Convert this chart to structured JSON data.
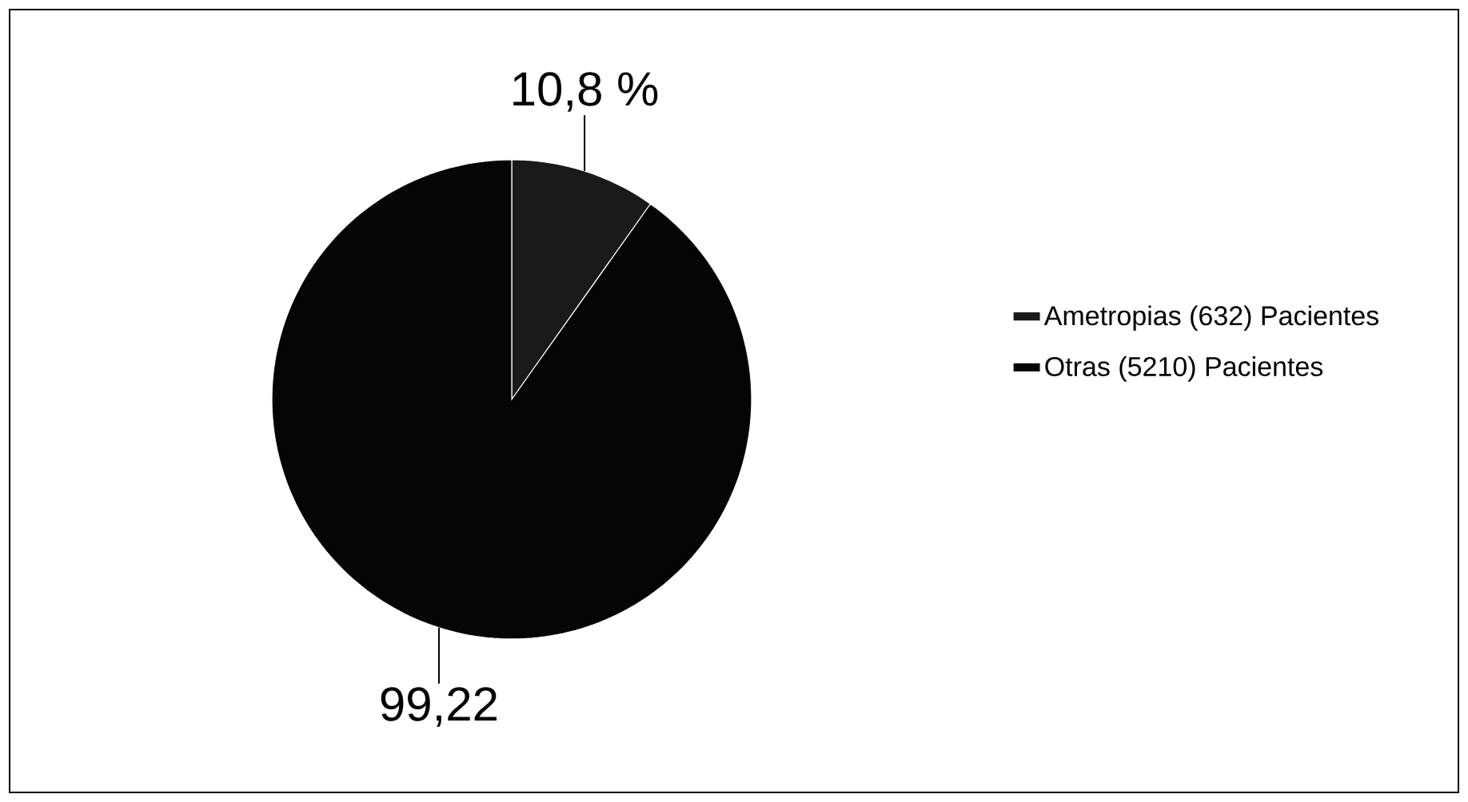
{
  "chart_data": {
    "type": "pie",
    "categories": [
      "Ametropias (632) Pacientes",
      "Otras (5210) Pacientes"
    ],
    "values": [
      10.8,
      99.22
    ],
    "value_labels": [
      "10,8 %",
      "99,22"
    ],
    "colors": [
      "#1a1a1a",
      "#050505"
    ],
    "legend": "right"
  }
}
